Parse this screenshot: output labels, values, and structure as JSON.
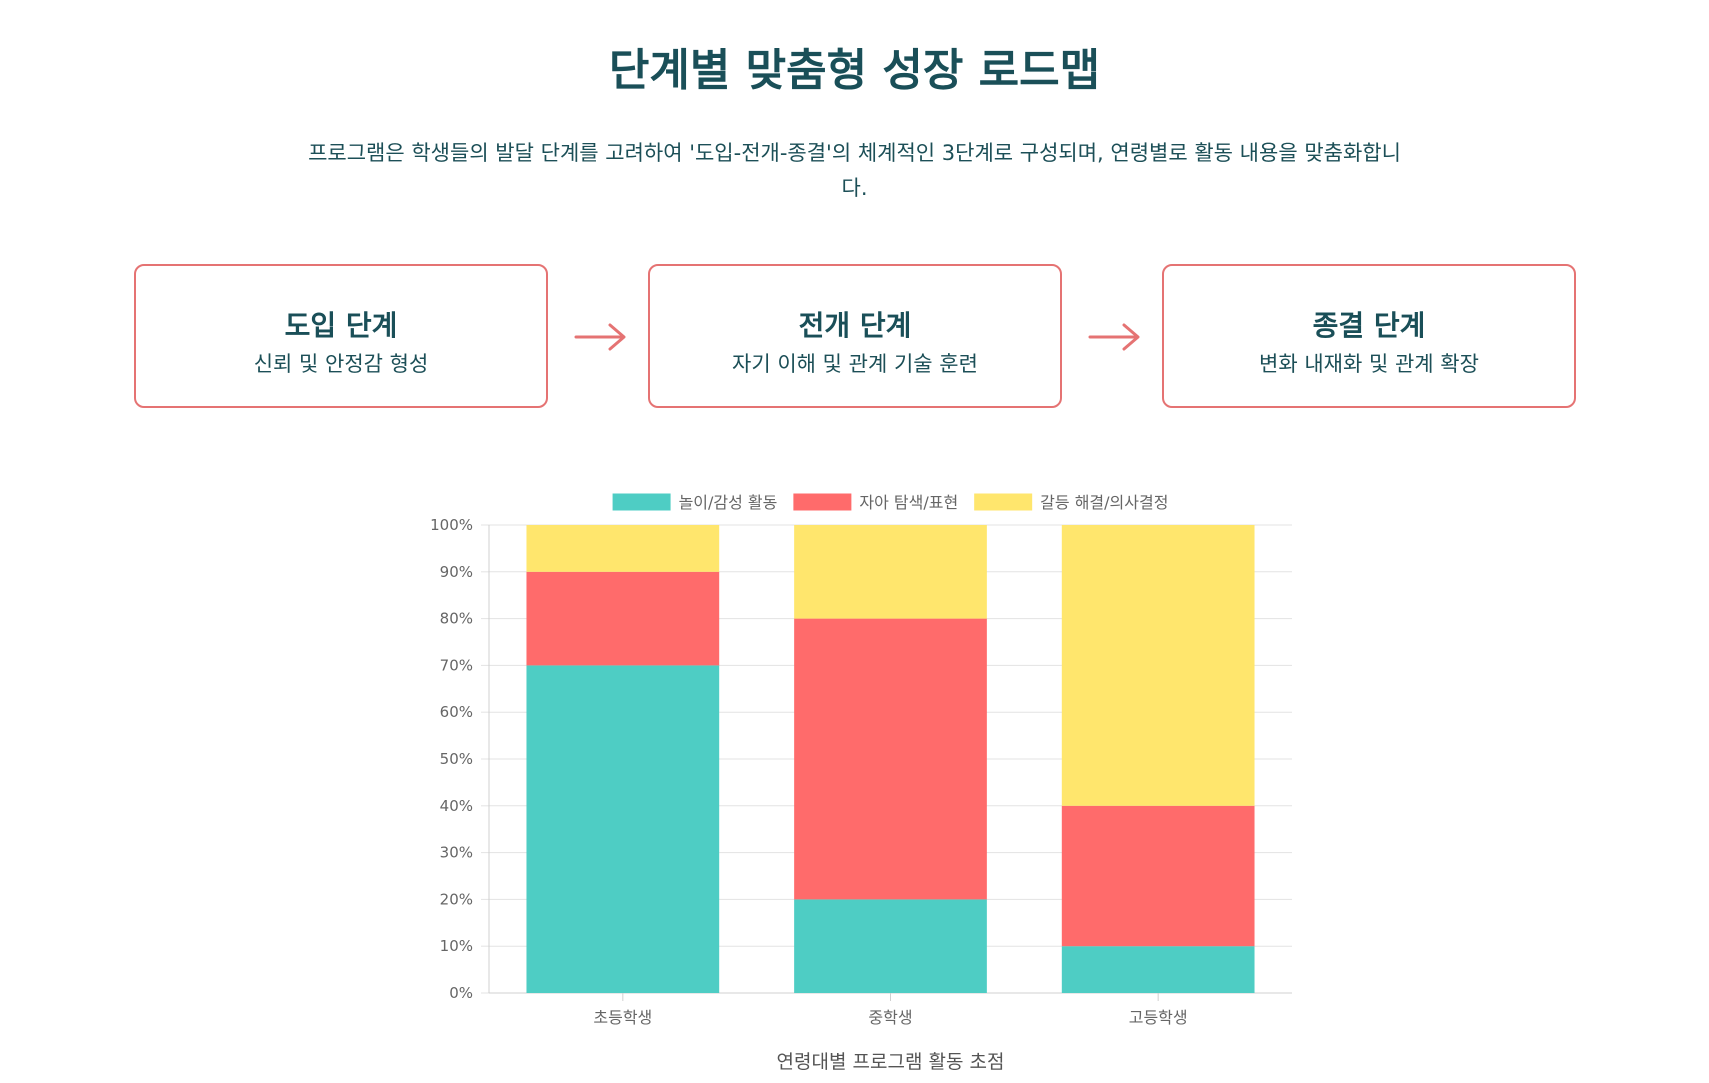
{
  "page": {
    "title": "단계별 맞춤형 성장 로드맵",
    "intro": "프로그램은 학생들의 발달 단계를 고려하여 '도입-전개-종결'의 체계적인 3단계로 구성되며, 연령별로 활동 내용을 맞춤화합니다."
  },
  "stages": [
    {
      "title": "도입 단계",
      "desc": "신뢰 및 안정감 형성"
    },
    {
      "title": "전개 단계",
      "desc": "자기 이해 및 관계 기술 훈련"
    },
    {
      "title": "종결 단계",
      "desc": "변화 내재화 및 관계 확장"
    }
  ],
  "icons": {
    "stage_arrow": "arrow-right-icon"
  },
  "colors": {
    "accent": "#e57373",
    "heading": "#1a4f58",
    "series": [
      "#4ecdc4",
      "#ff6b6b",
      "#ffe66d"
    ]
  },
  "chart_data": {
    "type": "bar",
    "stacked": true,
    "categories": [
      "초등학생",
      "중학생",
      "고등학생"
    ],
    "series": [
      {
        "name": "놀이/감성 활동",
        "values": [
          70,
          20,
          10
        ],
        "color": "#4ecdc4"
      },
      {
        "name": "자아 탐색/표현",
        "values": [
          20,
          60,
          30
        ],
        "color": "#ff6b6b"
      },
      {
        "name": "갈등 해결/의사결정",
        "values": [
          10,
          20,
          60
        ],
        "color": "#ffe66d"
      }
    ],
    "ylim": [
      0,
      100
    ],
    "yticks": [
      "0%",
      "10%",
      "20%",
      "30%",
      "40%",
      "50%",
      "60%",
      "70%",
      "80%",
      "90%",
      "100%"
    ],
    "xlabel": "연령대별 프로그램 활동 초점",
    "ylabel": "",
    "legend": "top",
    "grid": true
  }
}
